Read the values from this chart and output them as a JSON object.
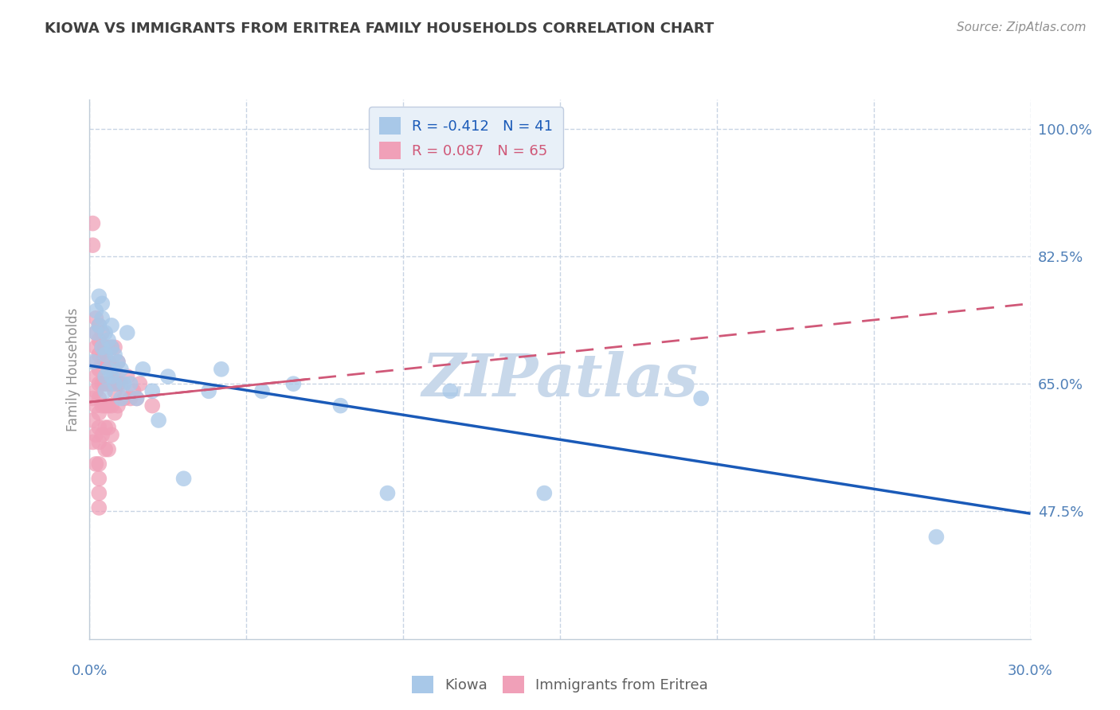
{
  "title": "KIOWA VS IMMIGRANTS FROM ERITREA FAMILY HOUSEHOLDS CORRELATION CHART",
  "source": "Source: ZipAtlas.com",
  "ylabel": "Family Households",
  "xlim": [
    0.0,
    0.3
  ],
  "ylim": [
    0.3,
    1.04
  ],
  "yticks": [
    0.475,
    0.65,
    0.825,
    1.0
  ],
  "ytick_labels": [
    "47.5%",
    "65.0%",
    "82.5%",
    "100.0%"
  ],
  "xticks": [
    0.0,
    0.05,
    0.1,
    0.15,
    0.2,
    0.25,
    0.3
  ],
  "xtick_labels_show": {
    "0.0": "0.0%",
    "0.30": "30.0%"
  },
  "kiowa_color": "#a8c8e8",
  "eritrea_color": "#f0a0b8",
  "kiowa_R": -0.412,
  "kiowa_N": 41,
  "eritrea_R": 0.087,
  "eritrea_N": 65,
  "trend_blue_color": "#1a5ab8",
  "trend_pink_color": "#d05878",
  "trend_pink_dashed_color": "#e08898",
  "watermark": "ZIPatlas",
  "watermark_color": "#c8d8ea",
  "kiowa_x": [
    0.001,
    0.002,
    0.002,
    0.003,
    0.003,
    0.004,
    0.004,
    0.004,
    0.005,
    0.005,
    0.005,
    0.005,
    0.006,
    0.006,
    0.007,
    0.007,
    0.007,
    0.008,
    0.008,
    0.009,
    0.01,
    0.01,
    0.011,
    0.012,
    0.013,
    0.015,
    0.017,
    0.02,
    0.022,
    0.025,
    0.03,
    0.038,
    0.042,
    0.055,
    0.065,
    0.08,
    0.095,
    0.115,
    0.145,
    0.195,
    0.27
  ],
  "kiowa_y": [
    0.68,
    0.75,
    0.72,
    0.77,
    0.73,
    0.76,
    0.74,
    0.7,
    0.72,
    0.69,
    0.66,
    0.64,
    0.71,
    0.67,
    0.73,
    0.7,
    0.66,
    0.69,
    0.65,
    0.68,
    0.67,
    0.63,
    0.65,
    0.72,
    0.65,
    0.63,
    0.67,
    0.64,
    0.6,
    0.66,
    0.52,
    0.64,
    0.67,
    0.64,
    0.65,
    0.62,
    0.5,
    0.64,
    0.5,
    0.63,
    0.44
  ],
  "eritrea_x": [
    0.001,
    0.001,
    0.001,
    0.001,
    0.001,
    0.002,
    0.002,
    0.002,
    0.002,
    0.002,
    0.002,
    0.002,
    0.002,
    0.002,
    0.003,
    0.003,
    0.003,
    0.003,
    0.003,
    0.003,
    0.003,
    0.003,
    0.003,
    0.003,
    0.003,
    0.003,
    0.003,
    0.004,
    0.004,
    0.004,
    0.004,
    0.004,
    0.004,
    0.005,
    0.005,
    0.005,
    0.005,
    0.005,
    0.005,
    0.006,
    0.006,
    0.006,
    0.006,
    0.006,
    0.006,
    0.007,
    0.007,
    0.007,
    0.007,
    0.007,
    0.008,
    0.008,
    0.008,
    0.008,
    0.009,
    0.009,
    0.009,
    0.01,
    0.011,
    0.012,
    0.013,
    0.014,
    0.015,
    0.016,
    0.02
  ],
  "eritrea_y": [
    0.87,
    0.84,
    0.63,
    0.6,
    0.57,
    0.74,
    0.72,
    0.7,
    0.68,
    0.66,
    0.64,
    0.62,
    0.58,
    0.54,
    0.73,
    0.71,
    0.69,
    0.67,
    0.65,
    0.63,
    0.61,
    0.59,
    0.57,
    0.54,
    0.52,
    0.5,
    0.48,
    0.72,
    0.7,
    0.68,
    0.65,
    0.62,
    0.58,
    0.7,
    0.68,
    0.65,
    0.62,
    0.59,
    0.56,
    0.7,
    0.68,
    0.65,
    0.62,
    0.59,
    0.56,
    0.7,
    0.67,
    0.65,
    0.62,
    0.58,
    0.7,
    0.67,
    0.64,
    0.61,
    0.68,
    0.65,
    0.62,
    0.65,
    0.63,
    0.66,
    0.63,
    0.64,
    0.63,
    0.65,
    0.62
  ],
  "background_color": "#ffffff",
  "grid_color": "#c8d4e4",
  "axis_label_color": "#5080b8",
  "ylabel_color": "#909090",
  "title_color": "#404040",
  "legend_box_color": "#e8f0f8",
  "legend_edge_color": "#c0cce0",
  "bottom_label_color": "#606060",
  "spine_color": "#c0ccd8"
}
